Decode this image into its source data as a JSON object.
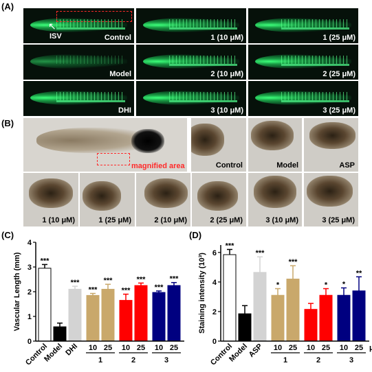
{
  "panels": {
    "a": "(A)",
    "b": "(B)",
    "c": "(C)",
    "d": "(D)"
  },
  "fluorescence": {
    "annotation": "ISV",
    "images": [
      "Control",
      "1 (10 μM)",
      "1 (25 μM)",
      "Model",
      "2 (10 μM)",
      "2 (25 μM)",
      "DHI",
      "3 (10 μM)",
      "3 (25 μM)"
    ]
  },
  "brightfield": {
    "magnified_label": "magnified area",
    "top_images": [
      "Control",
      "Model",
      "ASP"
    ],
    "bottom_images": [
      "1 (10 μM)",
      "1 (25 μM)",
      "2 (10 μM)",
      "2 (25 μM)",
      "3 (10 μM)",
      "3 (25 μM)"
    ]
  },
  "chart_data": [
    {
      "type": "bar",
      "ylabel": "Vascular Length (mm)",
      "ylim": [
        0,
        4
      ],
      "yticks": [
        0,
        1,
        2,
        3,
        4
      ],
      "categories": [
        "Control",
        "Model",
        "DHI",
        "10",
        "25",
        "10",
        "25",
        "10",
        "25"
      ],
      "groups": [
        {
          "label": "1",
          "from": 3,
          "to": 4
        },
        {
          "label": "2",
          "from": 5,
          "to": 6
        },
        {
          "label": "3",
          "from": 7,
          "to": 8
        }
      ],
      "values": [
        2.95,
        0.58,
        2.1,
        1.85,
        2.1,
        1.65,
        2.25,
        1.97,
        2.25
      ],
      "errors": [
        0.15,
        0.15,
        0.12,
        0.08,
        0.2,
        0.25,
        0.1,
        0.06,
        0.12
      ],
      "significance": [
        "***",
        "",
        "***",
        "***",
        "***",
        "***",
        "***",
        "***",
        "***"
      ],
      "colors": [
        "#ffffff",
        "#000000",
        "#d3d3d3",
        "#c9a86b",
        "#c9a86b",
        "#ff0000",
        "#ff0000",
        "#000080",
        "#000080"
      ],
      "unit": ""
    },
    {
      "type": "bar",
      "ylabel": "Staining intensity (10³)",
      "ylim": [
        0,
        6.5
      ],
      "yticks": [
        0,
        2,
        4,
        6
      ],
      "categories": [
        "Control",
        "Model",
        "ASP",
        "10",
        "25",
        "10",
        "25",
        "10",
        "25"
      ],
      "groups": [
        {
          "label": "1",
          "from": 3,
          "to": 4
        },
        {
          "label": "2",
          "from": 5,
          "to": 6
        },
        {
          "label": "3",
          "from": 7,
          "to": 8
        }
      ],
      "values": [
        5.85,
        1.85,
        4.65,
        3.1,
        4.2,
        2.15,
        3.1,
        3.1,
        3.4
      ],
      "errors": [
        0.35,
        0.55,
        1.05,
        0.45,
        0.9,
        0.4,
        0.45,
        0.5,
        0.95
      ],
      "significance": [
        "***",
        "",
        "***",
        "*",
        "***",
        "",
        "*",
        "*",
        "**"
      ],
      "colors": [
        "#ffffff",
        "#000000",
        "#d3d3d3",
        "#c9a86b",
        "#c9a86b",
        "#ff0000",
        "#ff0000",
        "#000080",
        "#000080"
      ],
      "unit": "μM"
    }
  ]
}
